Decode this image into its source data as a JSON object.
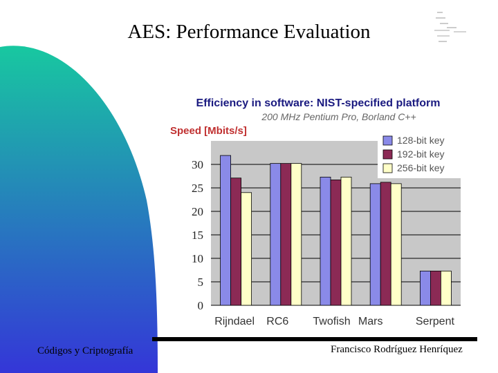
{
  "slide": {
    "title": "AES: Performance Evaluation",
    "footer_left": "Códigos y Criptografía",
    "footer_right": "Francisco Rodríguez Henríquez"
  },
  "colors": {
    "gradient_top": "#18c8a0",
    "gradient_bottom": "#3436d8",
    "plot_bg": "#c8c8c8",
    "title_color": "#1a1a80",
    "ylabel_color": "#c03030"
  },
  "chart_data": {
    "type": "bar",
    "title": "Efficiency in software: NIST-specified platform",
    "subtitle": "200 MHz Pentium Pro, Borland C++",
    "ylabel": "Speed [Mbits/s]",
    "xlabel": "",
    "categories": [
      "Rijndael",
      "RC6",
      "Twofish",
      "Mars",
      "Serpent"
    ],
    "series": [
      {
        "name": "128-bit key",
        "color": "#8a8ae8",
        "values": [
          31.9,
          30.2,
          27.3,
          25.9,
          7.3
        ]
      },
      {
        "name": "192-bit key",
        "color": "#8b2a55",
        "values": [
          27.1,
          30.2,
          26.7,
          26.2,
          7.3
        ]
      },
      {
        "name": "256-bit key",
        "color": "#ffffc8",
        "values": [
          24.0,
          30.2,
          27.3,
          25.9,
          7.3
        ]
      }
    ],
    "ylim": [
      0,
      35
    ],
    "yticks": [
      0,
      5,
      10,
      15,
      20,
      25,
      30
    ],
    "grid": true,
    "legend_position": "top-right"
  }
}
